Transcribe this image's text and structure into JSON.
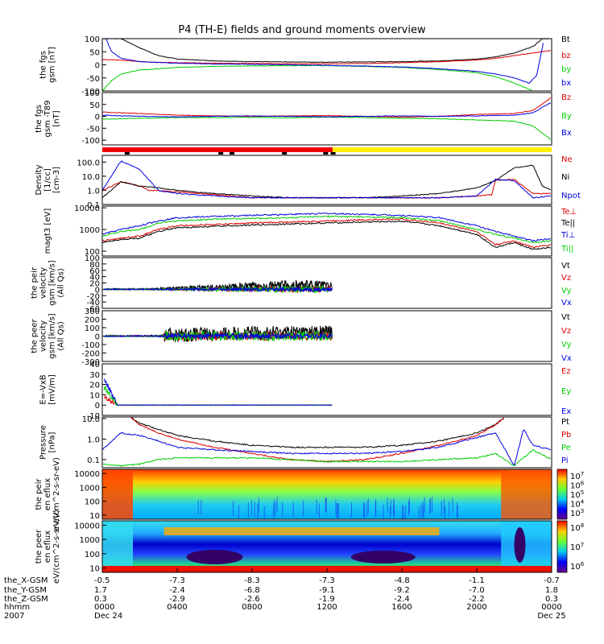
{
  "title": "P4 (TH-E) fields and ground moments overview",
  "chart_data": [
    {
      "type": "line",
      "ylabel": "the fgs gsm [nT]",
      "ylim": [
        -100,
        100
      ],
      "yticks": [
        "100",
        "50",
        "0",
        "-50",
        "-100"
      ],
      "series": [
        {
          "name": "Bt",
          "color": "#000000",
          "x": [
            0,
            1,
            2,
            3,
            4,
            6,
            8,
            10,
            12,
            14,
            16,
            18,
            20,
            21,
            22,
            23,
            23.5,
            24
          ],
          "y": [
            100,
            100,
            65,
            35,
            22,
            15,
            12,
            11,
            10,
            11,
            12,
            15,
            22,
            30,
            45,
            70,
            100,
            100
          ]
        },
        {
          "name": "bz",
          "color": "#dd0000",
          "x": [
            0,
            1,
            2,
            4,
            6,
            8,
            10,
            12,
            14,
            16,
            18,
            20,
            21,
            22,
            23,
            24
          ],
          "y": [
            20,
            18,
            12,
            8,
            6,
            5,
            4,
            4,
            5,
            8,
            12,
            18,
            25,
            35,
            45,
            55
          ]
        },
        {
          "name": "by",
          "color": "#00cc00",
          "x": [
            0,
            0.5,
            1,
            2,
            4,
            6,
            8,
            10,
            12,
            14,
            16,
            18,
            20,
            21,
            22,
            23
          ],
          "y": [
            -100,
            -60,
            -35,
            -20,
            -10,
            -6,
            -4,
            -3,
            -3,
            -6,
            -10,
            -18,
            -30,
            -45,
            -70,
            -100
          ]
        },
        {
          "name": "bx",
          "color": "#0000dd",
          "x": [
            0.2,
            0.5,
            1,
            2,
            4,
            6,
            8,
            10,
            12,
            14,
            16,
            18,
            20,
            21,
            22,
            22.8,
            23.2,
            23.6
          ],
          "y": [
            100,
            50,
            25,
            12,
            6,
            3,
            2,
            0,
            -2,
            -5,
            -8,
            -15,
            -25,
            -35,
            -50,
            -70,
            -40,
            100
          ]
        }
      ]
    },
    {
      "type": "line",
      "ylabel": "the fgs gsm -T89 [nT]",
      "ylim": [
        -120,
        100
      ],
      "yticks": [
        "100",
        "50",
        "0",
        "-50",
        "-100"
      ],
      "series": [
        {
          "name": "Bz",
          "color": "#dd0000",
          "x": [
            0,
            2,
            4,
            6,
            8,
            10,
            12,
            14,
            16,
            18,
            20,
            22,
            23,
            24
          ],
          "y": [
            18,
            12,
            5,
            2,
            0,
            2,
            3,
            0,
            -3,
            0,
            8,
            12,
            25,
            80
          ]
        },
        {
          "name": "By",
          "color": "#00cc00",
          "x": [
            0,
            2,
            4,
            6,
            8,
            10,
            12,
            14,
            16,
            18,
            20,
            22,
            23,
            24
          ],
          "y": [
            -12,
            -8,
            -5,
            -5,
            -4,
            -6,
            -3,
            -5,
            -8,
            -10,
            -15,
            -20,
            -40,
            -100
          ]
        },
        {
          "name": "Bx",
          "color": "#0000dd",
          "x": [
            0,
            2,
            4,
            6,
            8,
            10,
            12,
            14,
            16,
            18,
            20,
            22,
            23,
            24
          ],
          "y": [
            5,
            0,
            -2,
            0,
            2,
            0,
            -2,
            0,
            2,
            0,
            2,
            5,
            15,
            60
          ]
        }
      ]
    },
    {
      "type": "line",
      "ylabel": "Density [1/cc] [cm-3]",
      "scale": "log",
      "ylim": [
        0.1,
        300
      ],
      "yticks": [
        "100.0",
        "10.0",
        "1.0",
        "0.1"
      ],
      "series": [
        {
          "name": "Ne",
          "color": "#dd0000",
          "x": [
            0,
            1,
            1.5,
            2,
            2.5,
            4,
            6,
            8,
            10,
            12,
            14,
            16,
            18,
            20,
            20.8,
            21,
            22,
            23,
            24
          ],
          "y": [
            1,
            4,
            3,
            2,
            1,
            0.8,
            0.5,
            0.3,
            0.3,
            0.3,
            0.3,
            0.3,
            0.3,
            0.4,
            0.5,
            5,
            6,
            0.6,
            0.6
          ]
        },
        {
          "name": "Ni",
          "color": "#000000",
          "x": [
            0,
            1,
            2,
            3,
            4,
            6,
            8,
            10,
            12,
            14,
            16,
            18,
            20,
            21,
            22,
            23,
            23.5,
            24
          ],
          "y": [
            0.3,
            4,
            2,
            1.5,
            1,
            0.6,
            0.4,
            0.3,
            0.3,
            0.3,
            0.4,
            0.6,
            1.5,
            5,
            40,
            60,
            2,
            1
          ]
        },
        {
          "name": "Npot",
          "color": "#0000dd",
          "x": [
            0,
            1,
            2,
            3,
            4,
            6,
            8,
            10,
            12,
            14,
            16,
            18,
            20,
            21,
            22,
            23,
            24
          ],
          "y": [
            1,
            120,
            30,
            1,
            0.6,
            0.4,
            0.3,
            0.3,
            0.3,
            0.3,
            0.3,
            0.3,
            0.4,
            6,
            5,
            0.3,
            0.4
          ]
        }
      ]
    },
    {
      "type": "line",
      "ylabel": "magt3 [eV]",
      "scale": "log",
      "ylim": [
        60,
        12000
      ],
      "yticks": [
        "10000",
        "1000",
        "100"
      ],
      "series": [
        {
          "name": "Te⊥",
          "color": "#dd0000",
          "x": [
            0,
            1,
            2,
            3,
            4,
            6,
            8,
            10,
            12,
            14,
            16,
            18,
            20,
            21,
            22,
            23,
            24
          ],
          "y": [
            300,
            400,
            500,
            1000,
            1500,
            1700,
            2000,
            2200,
            2500,
            2800,
            3000,
            2000,
            800,
            200,
            300,
            150,
            200
          ]
        },
        {
          "name": "Te||",
          "color": "#000000",
          "x": [
            0,
            1,
            2,
            3,
            4,
            6,
            8,
            10,
            12,
            14,
            16,
            18,
            20,
            21,
            22,
            23,
            24
          ],
          "y": [
            250,
            350,
            400,
            800,
            1200,
            1400,
            1600,
            1800,
            2000,
            2200,
            2400,
            1500,
            600,
            150,
            250,
            120,
            150
          ]
        },
        {
          "name": "Ti⊥",
          "color": "#0000dd",
          "x": [
            0,
            1,
            2,
            3,
            4,
            6,
            8,
            10,
            12,
            14,
            16,
            18,
            20,
            21,
            22,
            23,
            24
          ],
          "y": [
            600,
            1000,
            1500,
            2500,
            3500,
            4000,
            4500,
            5000,
            5500,
            5000,
            4500,
            3500,
            1500,
            800,
            500,
            300,
            400
          ]
        },
        {
          "name": "Ti||",
          "color": "#00cc00",
          "x": [
            0,
            1,
            2,
            3,
            4,
            6,
            8,
            10,
            12,
            14,
            16,
            18,
            20,
            21,
            22,
            23,
            24
          ],
          "y": [
            500,
            800,
            1000,
            2000,
            2500,
            3000,
            3200,
            3500,
            4000,
            3800,
            3500,
            2500,
            1000,
            600,
            400,
            250,
            300
          ]
        }
      ]
    },
    {
      "type": "line",
      "ylabel": "the peir velocity gsm [km/s] (All Qs)",
      "ylim": [
        -60,
        100
      ],
      "yticks": [
        "100",
        "80",
        "60",
        "40",
        "20",
        "0",
        "-20",
        "-40",
        "-60"
      ],
      "series": [
        {
          "name": "Vt",
          "color": "#000000"
        },
        {
          "name": "Vz",
          "color": "#dd0000"
        },
        {
          "name": "Vy",
          "color": "#00cc00"
        },
        {
          "name": "Vx",
          "color": "#0000dd"
        }
      ]
    },
    {
      "type": "line",
      "ylabel": "the peer velocity gsm [km/s] (All Qs)",
      "ylim": [
        -300,
        300
      ],
      "yticks": [
        "300",
        "200",
        "100",
        "0",
        "-100",
        "-200",
        "-300"
      ],
      "series": [
        {
          "name": "Vt",
          "color": "#000000"
        },
        {
          "name": "Vz",
          "color": "#dd0000"
        },
        {
          "name": "Vy",
          "color": "#00cc00"
        },
        {
          "name": "Vx",
          "color": "#0000dd"
        }
      ]
    },
    {
      "type": "line",
      "ylabel": "E=-VxB [mV/m]",
      "ylim": [
        -10,
        40
      ],
      "yticks": [
        "40",
        "30",
        "20",
        "10",
        "0",
        "-10"
      ],
      "series": [
        {
          "name": "Ez",
          "color": "#dd0000"
        },
        {
          "name": "Ey",
          "color": "#00cc00"
        },
        {
          "name": "Ex",
          "color": "#0000dd"
        }
      ]
    },
    {
      "type": "line",
      "ylabel": "Pressure [nPa]",
      "scale": "log",
      "ylim": [
        0.04,
        12
      ],
      "yticks": [
        "10.0",
        "1.0",
        "0.1"
      ],
      "series": [
        {
          "name": "Pt",
          "color": "#000000",
          "x": [
            1.5,
            2,
            3,
            4,
            6,
            8,
            10,
            12,
            14,
            16,
            18,
            20,
            21,
            21.5
          ],
          "y": [
            12,
            6,
            3,
            1.5,
            0.8,
            0.5,
            0.4,
            0.4,
            0.4,
            0.5,
            0.8,
            2,
            5,
            12
          ]
        },
        {
          "name": "Pb",
          "color": "#dd0000",
          "x": [
            1.5,
            2,
            3,
            4,
            6,
            8,
            10,
            12,
            14,
            16,
            18,
            20,
            21,
            21.5
          ],
          "y": [
            12,
            5,
            2,
            1,
            0.4,
            0.2,
            0.1,
            0.08,
            0.1,
            0.2,
            0.5,
            1.5,
            5,
            12
          ]
        },
        {
          "name": "Pe",
          "color": "#00cc00",
          "x": [
            0,
            1,
            2,
            3,
            4,
            6,
            8,
            10,
            12,
            14,
            16,
            18,
            20,
            21,
            22,
            23,
            24
          ],
          "y": [
            0.06,
            0.05,
            0.06,
            0.1,
            0.12,
            0.12,
            0.12,
            0.1,
            0.08,
            0.08,
            0.08,
            0.1,
            0.12,
            0.2,
            0.05,
            0.3,
            0.1
          ]
        },
        {
          "name": "Pi",
          "color": "#0000dd",
          "x": [
            0,
            1,
            2,
            3,
            4,
            6,
            8,
            10,
            12,
            14,
            16,
            18,
            20,
            21,
            22,
            22.5,
            23,
            24
          ],
          "y": [
            0.3,
            2,
            1.5,
            0.8,
            0.4,
            0.3,
            0.25,
            0.2,
            0.2,
            0.2,
            0.25,
            0.4,
            1.2,
            2,
            0.05,
            3,
            0.5,
            0.3
          ]
        }
      ]
    },
    {
      "type": "heatmap",
      "ylabel": "the peir en eflux eV/(cm^2-s-sr-eV)",
      "yticks": [
        "10000",
        "1000",
        "100",
        "10"
      ],
      "colorbar_ticks": [
        "10^7",
        "10^6",
        "10^5",
        "10^4",
        "10^3"
      ]
    },
    {
      "type": "heatmap",
      "ylabel": "the peer en eflux eV/(cm^2-s-sr-eV)",
      "yticks": [
        "10000",
        "1000",
        "100",
        "10"
      ],
      "colorbar_ticks": [
        "10^8",
        "10^7",
        "10^6"
      ]
    }
  ],
  "footer": {
    "rows": [
      {
        "label": "the_X-GSM",
        "values": [
          "-0.5",
          "-7.3",
          "-8.3",
          "-7.3",
          "-4.8",
          "-1.1",
          "-0.7"
        ]
      },
      {
        "label": "the_Y-GSM",
        "values": [
          "1.7",
          "-2.4",
          "-6.8",
          "-9.1",
          "-9.2",
          "-7.0",
          "1.8"
        ]
      },
      {
        "label": "the_Z-GSM",
        "values": [
          "0.3",
          "-2.9",
          "-2.6",
          "-1.9",
          "-2.4",
          "-2.2",
          "0.3"
        ]
      },
      {
        "label": "hhmm",
        "values": [
          "0000",
          "0400",
          "0800",
          "1200",
          "1600",
          "2000",
          "0000"
        ]
      },
      {
        "label": "2007",
        "values": [
          "Dec 24",
          "",
          "",
          "",
          "",
          "",
          "Dec 25"
        ]
      }
    ]
  }
}
